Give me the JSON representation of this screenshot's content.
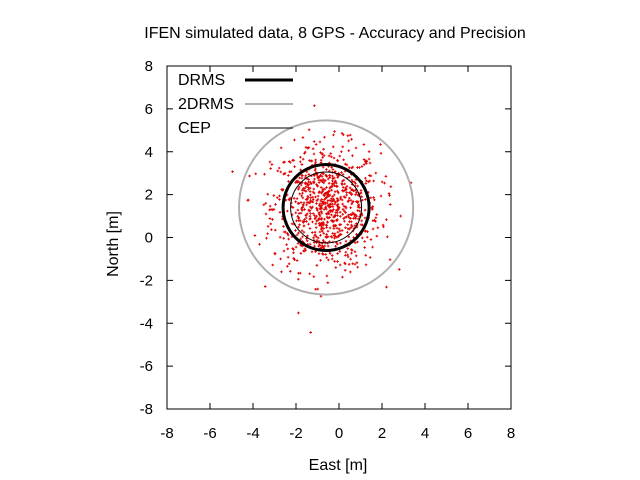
{
  "chart_data": {
    "type": "scatter",
    "title": "IFEN simulated data, 8 GPS - Accuracy and Precision",
    "xlabel": "East [m]",
    "ylabel": "North [m]",
    "xlim": [
      -8,
      8
    ],
    "ylim": [
      -8,
      8
    ],
    "xticks": [
      -8,
      -6,
      -4,
      -2,
      0,
      2,
      4,
      6,
      8
    ],
    "yticks": [
      -8,
      -6,
      -4,
      -2,
      0,
      2,
      4,
      6,
      8
    ],
    "grid": false,
    "legend_position": "top-left",
    "center": {
      "x": -0.6,
      "y": 1.4
    },
    "point_color": "#e00000",
    "circles": [
      {
        "name": "DRMS",
        "radius": 2.0,
        "color": "#000000"
      },
      {
        "name": "2DRMS",
        "radius": 4.05,
        "color": "#b0b0b0"
      },
      {
        "name": "CEP",
        "radius": 1.65,
        "color": "#000000"
      }
    ],
    "points": {
      "count": 900,
      "mean": [
        -0.6,
        1.4
      ],
      "std": [
        1.25,
        1.45
      ]
    }
  }
}
